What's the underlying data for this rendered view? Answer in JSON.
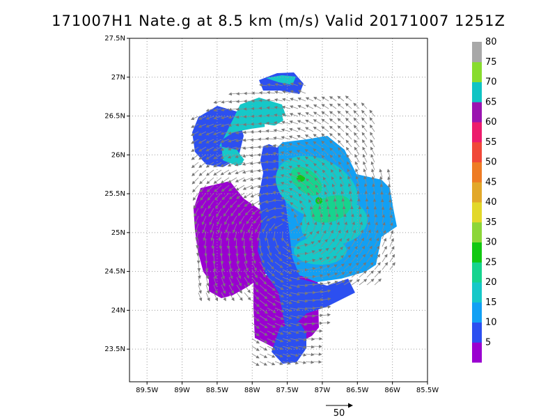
{
  "title": "171007H1 Nate.g at 8.5 km (m/s) Valid 20171007 1251Z",
  "map": {
    "lon_range": [
      -89.75,
      -85.5
    ],
    "lat_range": [
      23.08,
      27.5
    ],
    "x_ticks": [
      {
        "value": -89.5,
        "label": "89.5W"
      },
      {
        "value": -89.0,
        "label": "89W"
      },
      {
        "value": -88.5,
        "label": "88.5W"
      },
      {
        "value": -88.0,
        "label": "88W"
      },
      {
        "value": -87.5,
        "label": "87.5W"
      },
      {
        "value": -87.0,
        "label": "87W"
      },
      {
        "value": -86.5,
        "label": "86.5W"
      },
      {
        "value": -86.0,
        "label": "86W"
      },
      {
        "value": -85.5,
        "label": "85.5W"
      }
    ],
    "y_ticks": [
      {
        "value": 23.5,
        "label": "23.5N"
      },
      {
        "value": 24.0,
        "label": "24N"
      },
      {
        "value": 24.5,
        "label": "24.5N"
      },
      {
        "value": 25.0,
        "label": "25N"
      },
      {
        "value": 25.5,
        "label": "25.5N"
      },
      {
        "value": 26.0,
        "label": "26N"
      },
      {
        "value": 26.5,
        "label": "26.5N"
      },
      {
        "value": 27.0,
        "label": "27N"
      },
      {
        "value": 27.5,
        "label": "27.5N"
      }
    ],
    "grid": true
  },
  "colorbar": {
    "labels": [
      "5",
      "10",
      "15",
      "20",
      "25",
      "30",
      "35",
      "40",
      "45",
      "50",
      "55",
      "60",
      "65",
      "70",
      "75",
      "80"
    ],
    "colors": [
      "#9a00d0",
      "#2c4ff0",
      "#12a0f4",
      "#16c8c8",
      "#16d48e",
      "#12c812",
      "#8cd638",
      "#e2d82a",
      "#e2a82a",
      "#ee7c24",
      "#f04838",
      "#ec1c6c",
      "#9a14b0",
      "#10c4c4",
      "#88dc2e",
      "#a8a8a8"
    ]
  },
  "reference_vector": {
    "label": "50"
  }
}
